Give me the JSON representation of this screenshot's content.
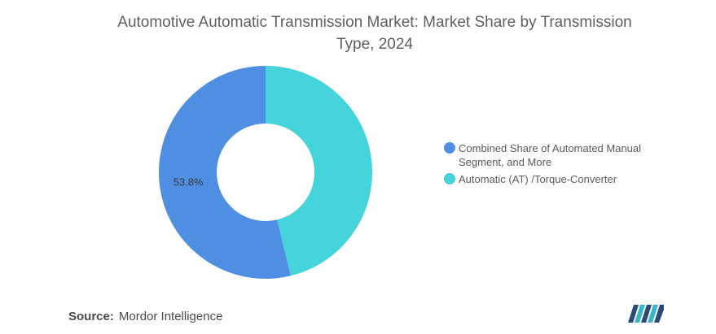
{
  "chart_data": {
    "type": "pie",
    "title": "Automotive Automatic Transmission Market: Market Share by Transmission Type, 2024",
    "slices": [
      {
        "label": "Combined Share of Automated Manual Segment, and More",
        "value": 53.8,
        "color": "#4f8fe3",
        "data_label": "53.8%"
      },
      {
        "label": "Automatic (AT) /Torque-Converter",
        "value": 46.2,
        "color": "#45d3dc",
        "data_label": ""
      }
    ],
    "donut": true,
    "legend_position": "right"
  },
  "source": {
    "label": "Source:",
    "text": "Mordor Intelligence"
  },
  "logo": {
    "icon": "mordor-intelligence-logo",
    "colors": [
      "#2b4a7a",
      "#3bb6c9"
    ]
  }
}
